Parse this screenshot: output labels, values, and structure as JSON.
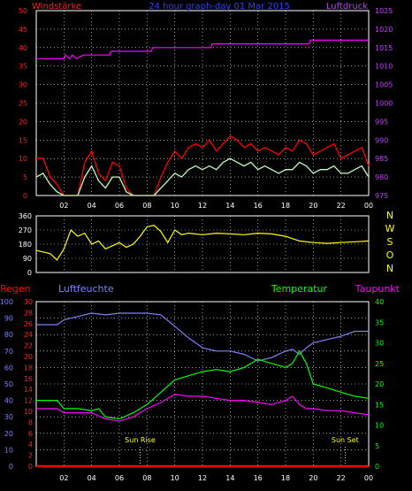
{
  "chart_data": [
    {
      "type": "line",
      "title": "24 hour graph-day 01 Mar 2015",
      "left_label": "Windstärke",
      "right_label": "Luftdruck",
      "x_ticks": [
        "02",
        "04",
        "06",
        "08",
        "10",
        "12",
        "14",
        "16",
        "18",
        "20",
        "22",
        "00"
      ],
      "y_left_ticks": [
        "0",
        "5",
        "10",
        "15",
        "20",
        "25",
        "30",
        "35",
        "40",
        "45",
        "50"
      ],
      "y_right_ticks": [
        "975",
        "980",
        "985",
        "990",
        "995",
        "1000",
        "1005",
        "1010",
        "1015",
        "1020",
        "1025"
      ],
      "ylim_left": [
        0,
        50
      ],
      "ylim_right": [
        975,
        1025
      ],
      "pressure": [
        [
          0,
          1012
        ],
        [
          2,
          1012
        ],
        [
          2.1,
          1013
        ],
        [
          2.4,
          1012
        ],
        [
          2.6,
          1013
        ],
        [
          2.9,
          1012
        ],
        [
          3.4,
          1013
        ],
        [
          5.3,
          1013
        ],
        [
          5.4,
          1014
        ],
        [
          8.3,
          1014
        ],
        [
          8.4,
          1015
        ],
        [
          10.5,
          1015
        ],
        [
          12.6,
          1015
        ],
        [
          12.7,
          1016
        ],
        [
          19.7,
          1016
        ],
        [
          19.8,
          1017
        ],
        [
          24,
          1017
        ]
      ],
      "wind_gust": [
        [
          0,
          10
        ],
        [
          0.5,
          10
        ],
        [
          1,
          5
        ],
        [
          1.5,
          3
        ],
        [
          2,
          0
        ],
        [
          3,
          0
        ],
        [
          3.5,
          9
        ],
        [
          4,
          12
        ],
        [
          4.5,
          6
        ],
        [
          5,
          4
        ],
        [
          5.5,
          9
        ],
        [
          6,
          8
        ],
        [
          6.5,
          2
        ],
        [
          7,
          0
        ],
        [
          8.5,
          0
        ],
        [
          9,
          5
        ],
        [
          9.5,
          9
        ],
        [
          10,
          12
        ],
        [
          10.5,
          10
        ],
        [
          11,
          13
        ],
        [
          11.5,
          14
        ],
        [
          12,
          13
        ],
        [
          12.5,
          15
        ],
        [
          13,
          12
        ],
        [
          13.5,
          14
        ],
        [
          14,
          16
        ],
        [
          14.5,
          15
        ],
        [
          15,
          13
        ],
        [
          15.5,
          14
        ],
        [
          16,
          12
        ],
        [
          16.5,
          13
        ],
        [
          17,
          12
        ],
        [
          17.5,
          11
        ],
        [
          18,
          13
        ],
        [
          18.5,
          12
        ],
        [
          19,
          15
        ],
        [
          19.5,
          14
        ],
        [
          20,
          11
        ],
        [
          20.5,
          12
        ],
        [
          21,
          13
        ],
        [
          21.5,
          14
        ],
        [
          22,
          10
        ],
        [
          22.5,
          11
        ],
        [
          23,
          12
        ],
        [
          23.5,
          13
        ],
        [
          24,
          8
        ]
      ],
      "wind_avg": [
        [
          0,
          5
        ],
        [
          0.5,
          6
        ],
        [
          1,
          3
        ],
        [
          1.5,
          1
        ],
        [
          2,
          0
        ],
        [
          3,
          0
        ],
        [
          3.5,
          5
        ],
        [
          4,
          8
        ],
        [
          4.5,
          4
        ],
        [
          5,
          2
        ],
        [
          5.5,
          5
        ],
        [
          6,
          5
        ],
        [
          6.5,
          1
        ],
        [
          7,
          0
        ],
        [
          8.5,
          0
        ],
        [
          9,
          2
        ],
        [
          9.5,
          4
        ],
        [
          10,
          6
        ],
        [
          10.5,
          5
        ],
        [
          11,
          7
        ],
        [
          11.5,
          8
        ],
        [
          12,
          7
        ],
        [
          12.5,
          8
        ],
        [
          13,
          7
        ],
        [
          13.5,
          9
        ],
        [
          14,
          10
        ],
        [
          14.5,
          9
        ],
        [
          15,
          8
        ],
        [
          15.5,
          9
        ],
        [
          16,
          7
        ],
        [
          16.5,
          8
        ],
        [
          17,
          7
        ],
        [
          17.5,
          6
        ],
        [
          18,
          7
        ],
        [
          18.5,
          7
        ],
        [
          19,
          9
        ],
        [
          19.5,
          8
        ],
        [
          20,
          6
        ],
        [
          20.5,
          7
        ],
        [
          21,
          7
        ],
        [
          21.5,
          8
        ],
        [
          22,
          6
        ],
        [
          22.5,
          6
        ],
        [
          23,
          7
        ],
        [
          23.5,
          8
        ],
        [
          24,
          5
        ]
      ]
    },
    {
      "type": "line",
      "right_labels": [
        "N",
        "W",
        "S",
        "O",
        "N"
      ],
      "y_ticks": [
        "0",
        "90",
        "180",
        "270",
        "360"
      ],
      "ylim": [
        0,
        360
      ],
      "x_ticks": [
        "02",
        "04",
        "06",
        "08",
        "10",
        "12",
        "14",
        "16",
        "18",
        "20",
        "22",
        "00"
      ],
      "direction": [
        [
          0,
          140
        ],
        [
          1,
          120
        ],
        [
          1.5,
          80
        ],
        [
          2,
          150
        ],
        [
          2.5,
          270
        ],
        [
          3,
          230
        ],
        [
          3.5,
          250
        ],
        [
          4,
          180
        ],
        [
          4.5,
          200
        ],
        [
          5,
          150
        ],
        [
          5.5,
          170
        ],
        [
          6,
          190
        ],
        [
          6.5,
          160
        ],
        [
          7,
          180
        ],
        [
          7.5,
          230
        ],
        [
          8,
          290
        ],
        [
          8.5,
          300
        ],
        [
          9,
          260
        ],
        [
          9.5,
          190
        ],
        [
          10,
          270
        ],
        [
          10.5,
          240
        ],
        [
          11,
          250
        ],
        [
          12,
          240
        ],
        [
          13,
          250
        ],
        [
          14,
          245
        ],
        [
          15,
          240
        ],
        [
          16,
          250
        ],
        [
          17,
          245
        ],
        [
          18,
          230
        ],
        [
          19,
          200
        ],
        [
          20,
          190
        ],
        [
          21,
          185
        ],
        [
          22,
          190
        ],
        [
          23,
          195
        ],
        [
          24,
          200
        ]
      ]
    },
    {
      "type": "line",
      "labels": [
        "Regen",
        "Luftfeuchte",
        "Temperatur",
        "Taupunkt"
      ],
      "colors": {
        "regen": "#ff0000",
        "luftfeuchte": "#8080ff",
        "temperatur": "#00ff00",
        "taupunkt": "#ff00ff"
      },
      "y_rain_ticks": [
        "0",
        "2",
        "4",
        "6",
        "8",
        "10",
        "12",
        "14",
        "16",
        "18",
        "20",
        "22",
        "24",
        "26",
        "28",
        "30"
      ],
      "y_hum_ticks": [
        "0",
        "10",
        "20",
        "30",
        "40",
        "50",
        "60",
        "70",
        "80",
        "90",
        "100"
      ],
      "y_temp_ticks": [
        "0",
        "5",
        "10",
        "15",
        "20",
        "25",
        "30",
        "35",
        "40"
      ],
      "ylim_rain": [
        0,
        30
      ],
      "ylim_hum": [
        0,
        100
      ],
      "ylim_temp": [
        0,
        40
      ],
      "x_ticks": [
        "02",
        "04",
        "06",
        "08",
        "10",
        "12",
        "14",
        "16",
        "18",
        "20",
        "22",
        "00"
      ],
      "annotations": [
        {
          "text": "Sun Rise",
          "x": 7.5
        },
        {
          "text": "Sun Set",
          "x": 22.3
        }
      ],
      "rain": [
        [
          0,
          0
        ],
        [
          24,
          0
        ]
      ],
      "humidity": [
        [
          0,
          86
        ],
        [
          1.5,
          86
        ],
        [
          2,
          89
        ],
        [
          3,
          91
        ],
        [
          4,
          93
        ],
        [
          5,
          92
        ],
        [
          6,
          93
        ],
        [
          8,
          93
        ],
        [
          9,
          92
        ],
        [
          10,
          85
        ],
        [
          11,
          78
        ],
        [
          12,
          72
        ],
        [
          13,
          70
        ],
        [
          14,
          70
        ],
        [
          15,
          68
        ],
        [
          16,
          64
        ],
        [
          17,
          66
        ],
        [
          18,
          70
        ],
        [
          18.5,
          71
        ],
        [
          19,
          68
        ],
        [
          19.5,
          72
        ],
        [
          20,
          75
        ],
        [
          21,
          77
        ],
        [
          22,
          79
        ],
        [
          23,
          82
        ],
        [
          24,
          82
        ]
      ],
      "temperature": [
        [
          0,
          16
        ],
        [
          1.5,
          16
        ],
        [
          2,
          14
        ],
        [
          3,
          14
        ],
        [
          4,
          13.5
        ],
        [
          4.5,
          14
        ],
        [
          5,
          12
        ],
        [
          6,
          11.5
        ],
        [
          7,
          13
        ],
        [
          8,
          15
        ],
        [
          9,
          18
        ],
        [
          10,
          21
        ],
        [
          11,
          22
        ],
        [
          12,
          23
        ],
        [
          13,
          23.5
        ],
        [
          14,
          23
        ],
        [
          15,
          24
        ],
        [
          16,
          26
        ],
        [
          17,
          25
        ],
        [
          18,
          24
        ],
        [
          18.5,
          25
        ],
        [
          19,
          28
        ],
        [
          19.5,
          25
        ],
        [
          20,
          20
        ],
        [
          21,
          19
        ],
        [
          22,
          18
        ],
        [
          23,
          17
        ],
        [
          24,
          16.5
        ]
      ],
      "dewpoint": [
        [
          0,
          14
        ],
        [
          1.5,
          14
        ],
        [
          2,
          13
        ],
        [
          3,
          13
        ],
        [
          4,
          13
        ],
        [
          5,
          11.5
        ],
        [
          6,
          11
        ],
        [
          7,
          12
        ],
        [
          8,
          14
        ],
        [
          9,
          15.5
        ],
        [
          10,
          17.5
        ],
        [
          11,
          17
        ],
        [
          12,
          17
        ],
        [
          13,
          16.5
        ],
        [
          14,
          16
        ],
        [
          15,
          16
        ],
        [
          16,
          15.5
        ],
        [
          17,
          15
        ],
        [
          18,
          16
        ],
        [
          18.5,
          17
        ],
        [
          19,
          15
        ],
        [
          19.5,
          14
        ],
        [
          20,
          14
        ],
        [
          21,
          13.5
        ],
        [
          22,
          13.5
        ],
        [
          23,
          13
        ],
        [
          24,
          12.5
        ]
      ]
    }
  ]
}
